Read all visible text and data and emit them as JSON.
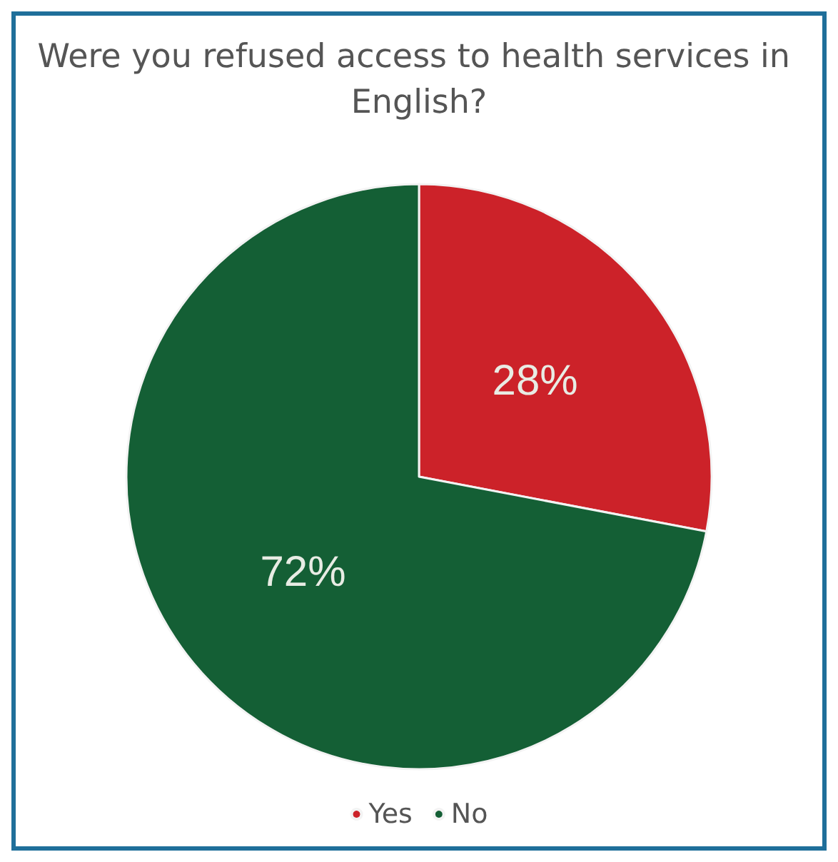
{
  "chart_data": {
    "type": "pie",
    "title": "Were you refused access to health services in English?",
    "categories": [
      "Yes",
      "No"
    ],
    "values": [
      28,
      72
    ],
    "value_labels": [
      "28%",
      "72%"
    ],
    "colors": [
      "#cc2229",
      "#145f35"
    ],
    "legend": "bottom"
  }
}
